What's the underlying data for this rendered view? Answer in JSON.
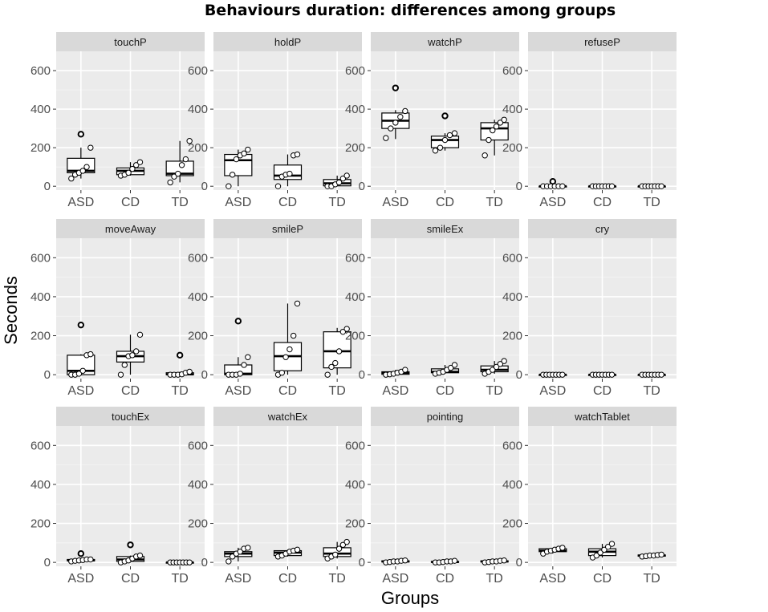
{
  "chart_data": {
    "type": "box",
    "title": "Behaviours duration: differences among groups",
    "xlabel": "Groups",
    "ylabel": "Seconds",
    "ylim": [
      -20,
      700
    ],
    "yticks": [
      0,
      200,
      400,
      600
    ],
    "categories": [
      "ASD",
      "CD",
      "TD"
    ],
    "colors": {
      "panel_bg": "#ebebeb",
      "strip_bg": "#d9d9d9",
      "grid_major": "#ffffff",
      "box_fill": "#ffffff",
      "box_line": "#000000",
      "tick_text": "#4d4d4d"
    },
    "panels": [
      {
        "name": "touchP",
        "groups": [
          {
            "group": "ASD",
            "min": 40,
            "q1": 70,
            "median": 80,
            "q3": 145,
            "max": 200,
            "outliers": [
              270
            ],
            "points": [
              40,
              60,
              70,
              80,
              100,
              200
            ]
          },
          {
            "group": "CD",
            "min": 55,
            "q1": 60,
            "median": 80,
            "q3": 95,
            "max": 125,
            "outliers": [],
            "points": [
              55,
              60,
              70,
              90,
              110,
              125
            ]
          },
          {
            "group": "TD",
            "min": 20,
            "q1": 55,
            "median": 65,
            "q3": 130,
            "max": 235,
            "outliers": [],
            "points": [
              20,
              50,
              65,
              110,
              140,
              235
            ]
          }
        ]
      },
      {
        "name": "holdP",
        "groups": [
          {
            "group": "ASD",
            "min": 0,
            "q1": 55,
            "median": 135,
            "q3": 165,
            "max": 190,
            "outliers": [],
            "points": [
              0,
              60,
              140,
              160,
              170,
              190
            ]
          },
          {
            "group": "CD",
            "min": 0,
            "q1": 35,
            "median": 55,
            "q3": 110,
            "max": 165,
            "outliers": [],
            "points": [
              0,
              50,
              60,
              65,
              160,
              165
            ]
          },
          {
            "group": "TD",
            "min": 0,
            "q1": 2,
            "median": 15,
            "q3": 35,
            "max": 55,
            "outliers": [],
            "points": [
              0,
              0,
              10,
              20,
              40,
              55
            ]
          }
        ]
      },
      {
        "name": "watchP",
        "groups": [
          {
            "group": "ASD",
            "min": 245,
            "q1": 300,
            "median": 340,
            "q3": 380,
            "max": 395,
            "outliers": [
              510
            ],
            "points": [
              250,
              300,
              330,
              360,
              390
            ]
          },
          {
            "group": "CD",
            "min": 185,
            "q1": 200,
            "median": 240,
            "q3": 260,
            "max": 275,
            "outliers": [
              365
            ],
            "points": [
              185,
              200,
              240,
              265,
              275
            ]
          },
          {
            "group": "TD",
            "min": 160,
            "q1": 240,
            "median": 300,
            "q3": 330,
            "max": 345,
            "outliers": [],
            "points": [
              160,
              240,
              290,
              310,
              330,
              345
            ]
          }
        ]
      },
      {
        "name": "refuseP",
        "groups": [
          {
            "group": "ASD",
            "min": 0,
            "q1": 0,
            "median": 0,
            "q3": 0,
            "max": 0,
            "outliers": [
              25
            ],
            "points": [
              0,
              0,
              0,
              0,
              0,
              0
            ]
          },
          {
            "group": "CD",
            "min": 0,
            "q1": 0,
            "median": 0,
            "q3": 0,
            "max": 0,
            "outliers": [],
            "points": [
              0,
              0,
              0,
              0,
              0,
              0,
              0
            ]
          },
          {
            "group": "TD",
            "min": 0,
            "q1": 0,
            "median": 0,
            "q3": 0,
            "max": 0,
            "outliers": [],
            "points": [
              0,
              0,
              0,
              0,
              0,
              0,
              0
            ]
          }
        ]
      },
      {
        "name": "moveAway",
        "groups": [
          {
            "group": "ASD",
            "min": 0,
            "q1": 0,
            "median": 20,
            "q3": 100,
            "max": 105,
            "outliers": [
              255
            ],
            "points": [
              0,
              0,
              5,
              20,
              100,
              105
            ]
          },
          {
            "group": "CD",
            "min": 0,
            "q1": 65,
            "median": 95,
            "q3": 120,
            "max": 205,
            "outliers": [],
            "points": [
              0,
              50,
              95,
              100,
              120,
              205
            ]
          },
          {
            "group": "TD",
            "min": 0,
            "q1": 0,
            "median": 2,
            "q3": 10,
            "max": 15,
            "outliers": [
              100
            ],
            "points": [
              0,
              0,
              0,
              2,
              10,
              15
            ]
          }
        ]
      },
      {
        "name": "smileP",
        "groups": [
          {
            "group": "ASD",
            "min": 0,
            "q1": 0,
            "median": 5,
            "q3": 50,
            "max": 90,
            "outliers": [
              275
            ],
            "points": [
              0,
              0,
              0,
              5,
              50,
              90
            ]
          },
          {
            "group": "CD",
            "min": 0,
            "q1": 20,
            "median": 95,
            "q3": 165,
            "max": 365,
            "outliers": [],
            "points": [
              0,
              10,
              90,
              130,
              200,
              365
            ]
          },
          {
            "group": "TD",
            "min": 0,
            "q1": 35,
            "median": 120,
            "q3": 220,
            "max": 240,
            "outliers": [],
            "points": [
              0,
              40,
              60,
              120,
              220,
              235
            ]
          }
        ]
      },
      {
        "name": "smileEx",
        "groups": [
          {
            "group": "ASD",
            "min": 0,
            "q1": 2,
            "median": 10,
            "q3": 15,
            "max": 25,
            "outliers": [],
            "points": [
              0,
              2,
              5,
              10,
              15,
              25
            ]
          },
          {
            "group": "CD",
            "min": 5,
            "q1": 10,
            "median": 15,
            "q3": 30,
            "max": 50,
            "outliers": [],
            "points": [
              5,
              10,
              15,
              25,
              35,
              50
            ]
          },
          {
            "group": "TD",
            "min": 5,
            "q1": 15,
            "median": 25,
            "q3": 45,
            "max": 70,
            "outliers": [],
            "points": [
              5,
              15,
              25,
              40,
              55,
              70
            ]
          }
        ]
      },
      {
        "name": "cry",
        "groups": [
          {
            "group": "ASD",
            "min": 0,
            "q1": 0,
            "median": 0,
            "q3": 0,
            "max": 0,
            "outliers": [],
            "points": [
              0,
              0,
              0,
              0,
              0,
              0,
              0
            ]
          },
          {
            "group": "CD",
            "min": 0,
            "q1": 0,
            "median": 0,
            "q3": 0,
            "max": 0,
            "outliers": [],
            "points": [
              0,
              0,
              0,
              0,
              0,
              0,
              0
            ]
          },
          {
            "group": "TD",
            "min": 0,
            "q1": 0,
            "median": 0,
            "q3": 0,
            "max": 0,
            "outliers": [],
            "points": [
              0,
              0,
              0,
              0,
              0,
              0,
              0
            ]
          }
        ]
      },
      {
        "name": "touchEx",
        "groups": [
          {
            "group": "ASD",
            "min": 5,
            "q1": 8,
            "median": 10,
            "q3": 15,
            "max": 15,
            "outliers": [
              45
            ],
            "points": [
              5,
              8,
              10,
              12,
              15,
              15
            ]
          },
          {
            "group": "CD",
            "min": 0,
            "q1": 5,
            "median": 15,
            "q3": 30,
            "max": 35,
            "outliers": [
              90
            ],
            "points": [
              0,
              5,
              10,
              20,
              30,
              35
            ]
          },
          {
            "group": "TD",
            "min": 0,
            "q1": 0,
            "median": 0,
            "q3": 0,
            "max": 0,
            "outliers": [],
            "points": [
              0,
              0,
              0,
              0,
              0,
              0,
              0
            ]
          }
        ]
      },
      {
        "name": "watchEx",
        "groups": [
          {
            "group": "ASD",
            "min": 5,
            "q1": 30,
            "median": 45,
            "q3": 55,
            "max": 75,
            "outliers": [],
            "points": [
              5,
              30,
              45,
              55,
              70,
              75
            ]
          },
          {
            "group": "CD",
            "min": 30,
            "q1": 35,
            "median": 50,
            "q3": 60,
            "max": 65,
            "outliers": [],
            "points": [
              30,
              35,
              45,
              55,
              60,
              65
            ]
          },
          {
            "group": "TD",
            "min": 20,
            "q1": 30,
            "median": 45,
            "q3": 75,
            "max": 105,
            "outliers": [],
            "points": [
              20,
              30,
              40,
              70,
              90,
              105
            ]
          }
        ]
      },
      {
        "name": "pointing",
        "groups": [
          {
            "group": "ASD",
            "min": 0,
            "q1": 2,
            "median": 5,
            "q3": 8,
            "max": 10,
            "outliers": [],
            "points": [
              0,
              2,
              5,
              5,
              8,
              10
            ]
          },
          {
            "group": "CD",
            "min": 0,
            "q1": 0,
            "median": 2,
            "q3": 5,
            "max": 8,
            "outliers": [],
            "points": [
              0,
              0,
              2,
              5,
              5,
              8
            ]
          },
          {
            "group": "TD",
            "min": 0,
            "q1": 2,
            "median": 5,
            "q3": 8,
            "max": 10,
            "outliers": [],
            "points": [
              0,
              2,
              5,
              5,
              8,
              10
            ]
          }
        ]
      },
      {
        "name": "watchTablet",
        "groups": [
          {
            "group": "ASD",
            "min": 45,
            "q1": 55,
            "median": 60,
            "q3": 70,
            "max": 75,
            "outliers": [],
            "points": [
              45,
              55,
              60,
              65,
              70,
              75
            ]
          },
          {
            "group": "CD",
            "min": 25,
            "q1": 35,
            "median": 55,
            "q3": 70,
            "max": 95,
            "outliers": [],
            "points": [
              25,
              35,
              50,
              65,
              80,
              95
            ]
          },
          {
            "group": "TD",
            "min": 30,
            "q1": 32,
            "median": 35,
            "q3": 38,
            "max": 40,
            "outliers": [],
            "points": [
              30,
              32,
              35,
              35,
              38,
              40
            ]
          }
        ]
      }
    ]
  }
}
